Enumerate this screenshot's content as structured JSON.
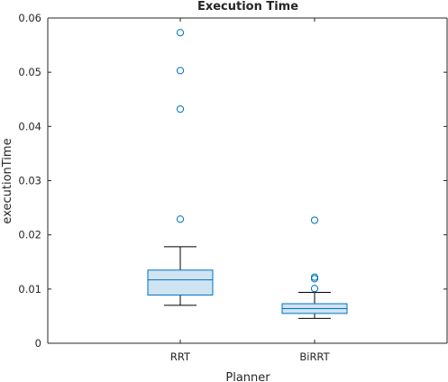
{
  "chart_data": {
    "type": "boxplot",
    "title": "Execution Time",
    "xlabel": "Planner",
    "ylabel": "executionTime",
    "categories": [
      "RRT",
      "BiRRT"
    ],
    "ylim": [
      0,
      0.06
    ],
    "yticks": [
      0,
      0.01,
      0.02,
      0.03,
      0.04,
      0.05,
      0.06
    ],
    "ytick_labels": [
      "0",
      "0.01",
      "0.02",
      "0.03",
      "0.04",
      "0.05",
      "0.06"
    ],
    "grid": false,
    "boxes": [
      {
        "category": "RRT",
        "whisker_low": 0.007,
        "q1": 0.0089,
        "median": 0.0117,
        "q3": 0.0135,
        "whisker_high": 0.0178,
        "outliers": [
          0.0229,
          0.0432,
          0.0503,
          0.0573
        ]
      },
      {
        "category": "BiRRT",
        "whisker_low": 0.0046,
        "q1": 0.0055,
        "median": 0.0064,
        "q3": 0.0073,
        "whisker_high": 0.0094,
        "outliers": [
          0.0101,
          0.0119,
          0.0122,
          0.0227
        ]
      }
    ],
    "colors": {
      "box_fill": "#cfe3f3",
      "box_edge": "#0072bd",
      "whisker": "#000000",
      "outlier": "#0072bd",
      "axis": "#262626"
    }
  }
}
